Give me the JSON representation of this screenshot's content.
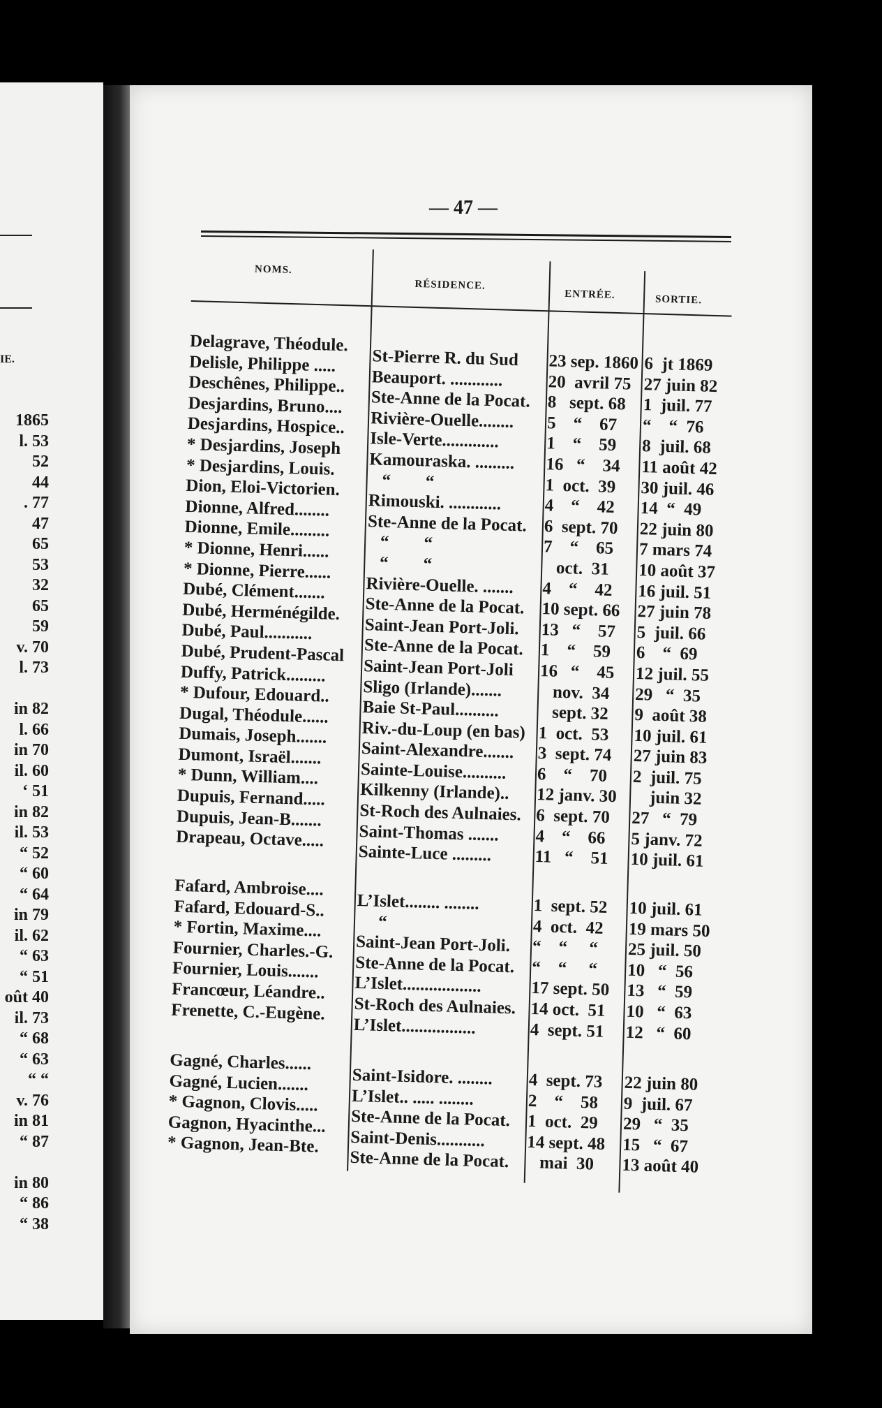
{
  "page_number": "— 47 —",
  "left_page": {
    "header": "IE.",
    "values": [
      "1865",
      "l. 53",
      "52",
      "44",
      ". 77",
      "47",
      "65",
      "53",
      "32",
      "65",
      "59",
      "v. 70",
      "l. 73",
      "",
      "in 82",
      "l. 66",
      "in 70",
      "il. 60",
      "‘ 51",
      "in 82",
      "il. 53",
      "“ 52",
      "“ 60",
      "“ 64",
      "in 79",
      "il. 62",
      "“ 63",
      "“ 51",
      "oût 40",
      "il. 73",
      "“ 68",
      "“ 63",
      "“ “",
      "v. 76",
      "in 81",
      "“ 87",
      "",
      "in 80",
      "“ 86",
      "“ 38"
    ]
  },
  "headers": {
    "noms": "NOMS.",
    "residence": "RÉSIDENCE.",
    "entree": "ENTRÉE.",
    "sortie": "SORTIE."
  },
  "groups": [
    {
      "rows": [
        {
          "name": "Delagrave, Théodule.",
          "residence": "St-Pierre R. du Sud",
          "entree": "23 sep. 1860",
          "sortie": "6  jt 1869"
        },
        {
          "name": "Delisle, Philippe .....",
          "residence": "Beauport. ............",
          "entree": "20  avril 75",
          "sortie": "27 juin 82"
        },
        {
          "name": "Deschênes, Philippe..",
          "residence": "Ste-Anne de la Pocat.",
          "entree": "8   sept. 68",
          "sortie": "1  juil. 77"
        },
        {
          "name": "Desjardins, Bruno....",
          "residence": "Rivière-Ouelle........",
          "entree": "5    “    67",
          "sortie": "“    “  76"
        },
        {
          "name": "Desjardins, Hospice..",
          "residence": "Isle-Verte.............",
          "entree": "1    “    59",
          "sortie": "8  juil. 68"
        },
        {
          "name": "* Desjardins, Joseph",
          "residence": "Kamouraska. .........",
          "entree": "16   “    34",
          "sortie": "11 août 42"
        },
        {
          "name": "* Desjardins, Louis.",
          "residence": "   “        “",
          "entree": "1  oct.  39",
          "sortie": "30 juil. 46"
        },
        {
          "name": "Dion, Eloi-Victorien.",
          "residence": "Rimouski. ............",
          "entree": "4    “    42",
          "sortie": "14  “  49"
        },
        {
          "name": "Dionne, Alfred........",
          "residence": "Ste-Anne de la Pocat.",
          "entree": "6  sept. 70",
          "sortie": "22 juin 80"
        },
        {
          "name": "Dionne, Emile.........",
          "residence": "   “        “",
          "entree": "7    “    65",
          "sortie": "7 mars 74"
        },
        {
          "name": "* Dionne, Henri......",
          "residence": "   “        “",
          "entree": "   oct.  31",
          "sortie": "10 août 37"
        },
        {
          "name": "* Dionne, Pierre......",
          "residence": "Rivière-Ouelle. .......",
          "entree": "4    “    42",
          "sortie": "16 juil. 51"
        },
        {
          "name": "Dubé, Clément.......",
          "residence": "Ste-Anne de la Pocat.",
          "entree": "10 sept. 66",
          "sortie": "27 juin 78"
        },
        {
          "name": "Dubé, Herménégilde.",
          "residence": "Saint-Jean Port-Joli.",
          "entree": "13   “    57",
          "sortie": "5  juil. 66"
        },
        {
          "name": "Dubé, Paul...........",
          "residence": "Ste-Anne de la Pocat.",
          "entree": "1    “    59",
          "sortie": "6    “  69"
        },
        {
          "name": "Dubé, Prudent-Pascal",
          "residence": "Saint-Jean Port-Joli",
          "entree": "16   “    45",
          "sortie": "12 juil. 55"
        },
        {
          "name": "Duffy, Patrick.........",
          "residence": "Sligo (Irlande).......",
          "entree": "   nov.  34",
          "sortie": "29   “  35"
        },
        {
          "name": "* Dufour, Edouard..",
          "residence": "Baie St-Paul..........",
          "entree": "   sept. 32",
          "sortie": "9  août 38"
        },
        {
          "name": "Dugal, Théodule......",
          "residence": "Riv.-du-Loup (en bas)",
          "entree": "1  oct.  53",
          "sortie": "10 juil. 61"
        },
        {
          "name": "Dumais, Joseph.......",
          "residence": "Saint-Alexandre.......",
          "entree": "3  sept. 74",
          "sortie": "27 juin 83"
        },
        {
          "name": "Dumont, Israël.......",
          "residence": "Sainte-Louise..........",
          "entree": "6    “    70",
          "sortie": "2  juil. 75"
        },
        {
          "name": "* Dunn, William....",
          "residence": "Kilkenny (Irlande)..",
          "entree": "12 janv. 30",
          "sortie": "    juin 32"
        },
        {
          "name": "Dupuis, Fernand.....",
          "residence": "St-Roch des Aulnaies.",
          "entree": "6  sept. 70",
          "sortie": "27   “  79"
        },
        {
          "name": "Dupuis, Jean-B.......",
          "residence": "Saint-Thomas .......",
          "entree": "4    “    66",
          "sortie": "5 janv. 72"
        },
        {
          "name": "Drapeau, Octave.....",
          "residence": "Sainte-Luce .........",
          "entree": "11   “    51",
          "sortie": "10 juil. 61"
        }
      ]
    },
    {
      "rows": [
        {
          "name": "Fafard, Ambroise....",
          "residence": "L’Islet........ ........",
          "entree": "1  sept. 52",
          "sortie": "10 juil. 61"
        },
        {
          "name": "Fafard, Edouard-S..",
          "residence": "     “",
          "entree": "4  oct.  42",
          "sortie": "19 mars 50"
        },
        {
          "name": "* Fortin, Maxime....",
          "residence": "Saint-Jean Port-Joli.",
          "entree": "“    “     “",
          "sortie": "25 juil. 50"
        },
        {
          "name": "Fournier, Charles.-G.",
          "residence": "Ste-Anne de la Pocat.",
          "entree": "“    “     “",
          "sortie": "10   “  56"
        },
        {
          "name": "Fournier, Louis.......",
          "residence": "L’Islet..................",
          "entree": "17 sept. 50",
          "sortie": "13   “  59"
        },
        {
          "name": "Francœur, Léandre..",
          "residence": "St-Roch des Aulnaies.",
          "entree": "14 oct.  51",
          "sortie": "10   “  63"
        },
        {
          "name": "Frenette, C.-Eugène.",
          "residence": "L’Islet.................",
          "entree": "4  sept. 51",
          "sortie": "12   “  60"
        }
      ]
    },
    {
      "rows": [
        {
          "name": "Gagné, Charles......",
          "residence": "Saint-Isidore. ........",
          "entree": "4  sept. 73",
          "sortie": "22 juin 80"
        },
        {
          "name": "Gagné, Lucien.......",
          "residence": "L’Islet.. ..... ........",
          "entree": "2    “    58",
          "sortie": "9  juil. 67"
        },
        {
          "name": "* Gagnon, Clovis.....",
          "residence": "Ste-Anne de la Pocat.",
          "entree": "1  oct.  29",
          "sortie": "29   “  35"
        },
        {
          "name": "Gagnon, Hyacinthe...",
          "residence": "Saint-Denis...........",
          "entree": "14 sept. 48",
          "sortie": "15   “  67"
        },
        {
          "name": "* Gagnon, Jean-Bte.",
          "residence": "Ste-Anne de la Pocat.",
          "entree": "   mai  30",
          "sortie": "13 août 40"
        }
      ]
    }
  ]
}
